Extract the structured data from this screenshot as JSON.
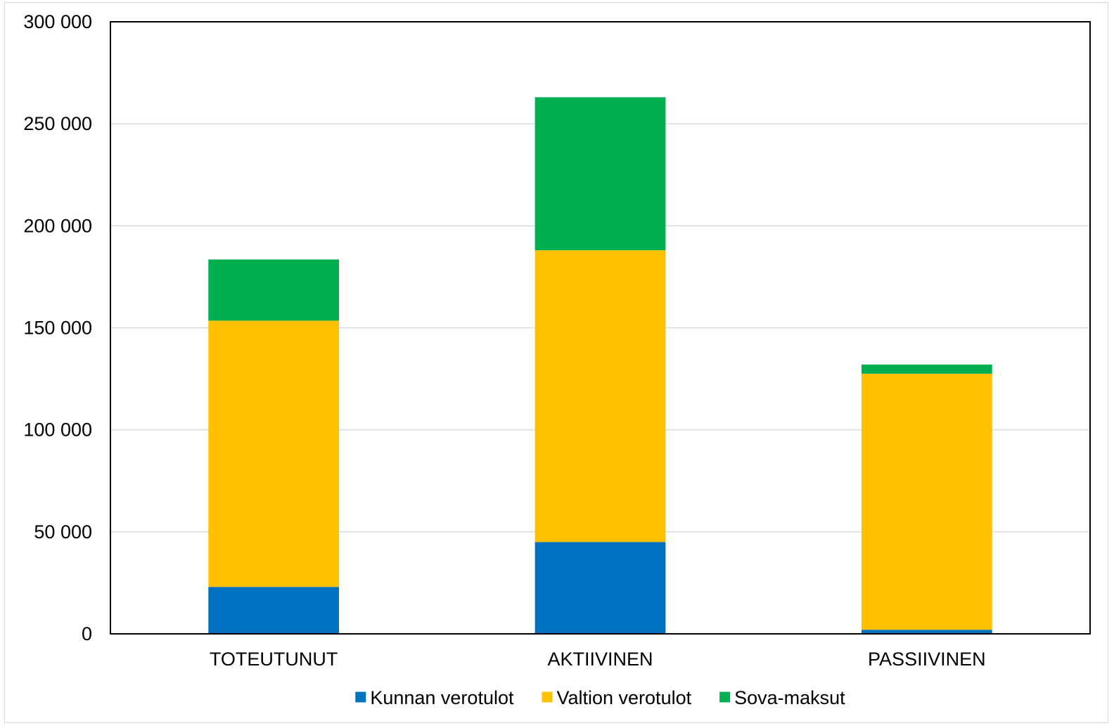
{
  "chart_data": {
    "type": "bar",
    "stacked": true,
    "categories": [
      "TOTEUTUNUT",
      "AKTIIVINEN",
      "PASSIIVINEN"
    ],
    "series": [
      {
        "name": "Kunnan verotulot",
        "color": "#0070C0",
        "values": [
          23000,
          45000,
          2000
        ]
      },
      {
        "name": "Valtion verotulot",
        "color": "#FFC000",
        "values": [
          130500,
          143000,
          125500
        ]
      },
      {
        "name": "Sova-maksut",
        "color": "#00B050",
        "values": [
          30000,
          75000,
          4500
        ]
      }
    ],
    "ylim": [
      0,
      300000
    ],
    "yticks": [
      0,
      50000,
      100000,
      150000,
      200000,
      250000,
      300000
    ],
    "ytick_labels": [
      "0",
      "50 000",
      "100 000",
      "150 000",
      "200 000",
      "250 000",
      "300 000"
    ],
    "grid": true,
    "legend_position": "bottom",
    "title": "",
    "xlabel": "",
    "ylabel": ""
  }
}
